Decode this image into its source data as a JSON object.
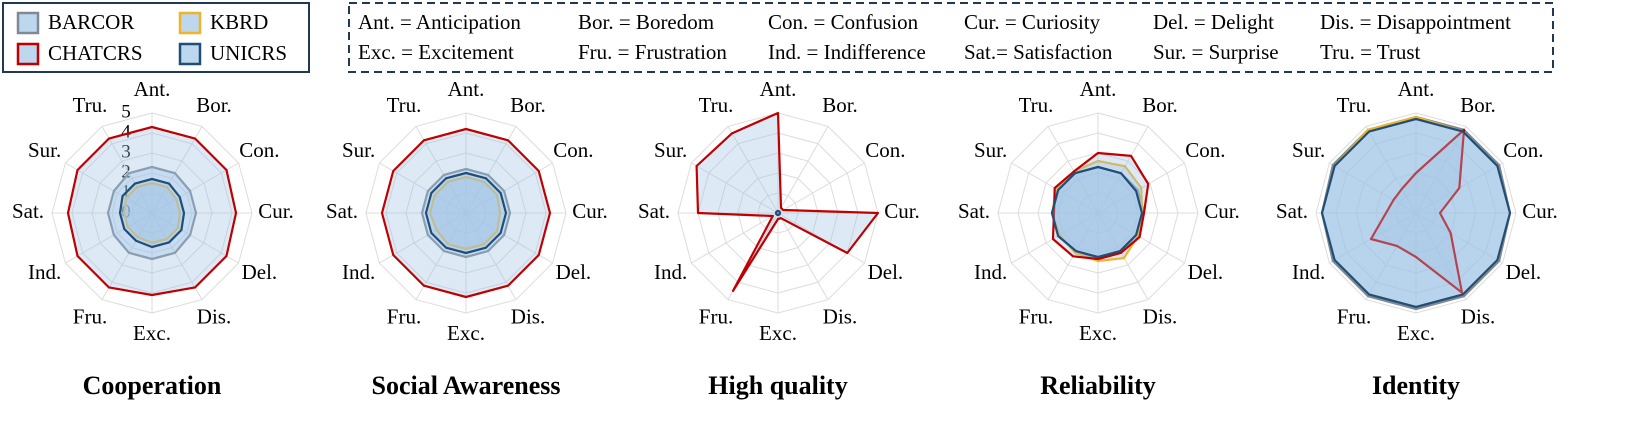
{
  "abbreviations": [
    [
      "Ant. = Anticipation",
      "Bor. = Boredom",
      "Con. = Confusion",
      "Cur. = Curiosity",
      "Del. = Delight",
      "Dis. = Disappointment"
    ],
    [
      "Exc. = Excitement",
      "Fru. = Frustration",
      "Ind. = Indifference",
      "Sat.= Satisfaction",
      "Sur. = Surprise",
      "Tru. = Trust"
    ]
  ],
  "chart_data": [
    {
      "type": "radar",
      "title": "Cooperation",
      "show_tick_labels": true,
      "categories": [
        "Ant.",
        "Bor.",
        "Con.",
        "Cur.",
        "Del.",
        "Dis.",
        "Exc.",
        "Fru.",
        "Ind.",
        "Sat.",
        "Sur.",
        "Tru."
      ],
      "rlim": [
        0,
        5
      ],
      "rticks": [
        0,
        1,
        2,
        3,
        4,
        5
      ],
      "series": [
        {
          "name": "BARCOR",
          "color": "#7f8a96",
          "values": [
            2.3,
            2.3,
            2.2,
            2.2,
            2.2,
            2.3,
            2.3,
            2.3,
            2.2,
            2.2,
            2.2,
            2.3
          ]
        },
        {
          "name": "KBRD",
          "color": "#f0b429",
          "values": [
            1.5,
            1.5,
            1.4,
            1.4,
            1.5,
            1.5,
            1.5,
            1.4,
            1.4,
            1.4,
            1.5,
            1.5
          ]
        },
        {
          "name": "CHATCRS",
          "color": "#c00000",
          "values": [
            4.3,
            4.3,
            4.3,
            4.2,
            4.3,
            4.3,
            4.1,
            4.3,
            4.3,
            4.2,
            4.3,
            4.3
          ]
        },
        {
          "name": "UNICRS",
          "color": "#1f4e79",
          "values": [
            1.7,
            1.7,
            1.6,
            1.6,
            1.7,
            1.7,
            1.7,
            1.6,
            1.6,
            1.6,
            1.7,
            1.7
          ]
        }
      ]
    },
    {
      "type": "radar",
      "title": "Social Awareness",
      "show_tick_labels": false,
      "categories": [
        "Ant.",
        "Bor.",
        "Con.",
        "Cur.",
        "Del.",
        "Dis.",
        "Exc.",
        "Fru.",
        "Ind.",
        "Sat.",
        "Sur.",
        "Tru."
      ],
      "rlim": [
        0,
        5
      ],
      "rticks": [
        0,
        1,
        2,
        3,
        4,
        5
      ],
      "series": [
        {
          "name": "BARCOR",
          "color": "#7f8a96",
          "values": [
            2.2,
            2.2,
            2.2,
            2.2,
            2.2,
            2.2,
            2.2,
            2.2,
            2.2,
            2.2,
            2.2,
            2.2
          ]
        },
        {
          "name": "KBRD",
          "color": "#f0b429",
          "values": [
            1.8,
            1.8,
            1.8,
            1.7,
            1.8,
            1.8,
            1.8,
            1.8,
            1.7,
            1.8,
            1.8,
            1.8
          ]
        },
        {
          "name": "CHATCRS",
          "color": "#c00000",
          "values": [
            4.2,
            4.2,
            4.2,
            4.2,
            4.2,
            4.2,
            4.2,
            4.2,
            4.2,
            4.2,
            4.2,
            4.2
          ]
        },
        {
          "name": "UNICRS",
          "color": "#1f4e79",
          "values": [
            2.0,
            2.0,
            2.0,
            2.0,
            2.0,
            2.0,
            2.0,
            2.0,
            2.0,
            2.0,
            2.0,
            2.0
          ]
        }
      ]
    },
    {
      "type": "radar",
      "title": "High quality",
      "show_tick_labels": false,
      "categories": [
        "Ant.",
        "Bor.",
        "Con.",
        "Cur.",
        "Del.",
        "Dis.",
        "Exc.",
        "Fru.",
        "Ind.",
        "Sat.",
        "Sur.",
        "Tru."
      ],
      "rlim": [
        0,
        5
      ],
      "rticks": [
        0,
        1,
        2,
        3,
        4,
        5
      ],
      "series": [
        {
          "name": "BARCOR",
          "color": "#7f8a96",
          "values": [
            0.1,
            0.1,
            0.1,
            0.1,
            0.1,
            0.1,
            0.1,
            0.1,
            0.1,
            0.1,
            0.1,
            0.1
          ]
        },
        {
          "name": "KBRD",
          "color": "#f0b429",
          "values": [
            0.1,
            0.1,
            0.1,
            0.1,
            0.1,
            0.1,
            0.1,
            0.1,
            0.1,
            0.1,
            0.1,
            0.1
          ]
        },
        {
          "name": "CHATCRS",
          "color": "#c00000",
          "values": [
            5.0,
            0.3,
            0.3,
            5.0,
            4.0,
            0.3,
            0.3,
            4.5,
            0.3,
            4.0,
            4.7,
            4.6
          ]
        },
        {
          "name": "UNICRS",
          "color": "#1f4e79",
          "values": [
            0.1,
            0.1,
            0.1,
            0.1,
            0.1,
            0.1,
            0.1,
            0.1,
            0.1,
            0.1,
            0.1,
            0.1
          ]
        }
      ]
    },
    {
      "type": "radar",
      "title": "Reliability",
      "show_tick_labels": false,
      "categories": [
        "Ant.",
        "Bor.",
        "Con.",
        "Cur.",
        "Del.",
        "Dis.",
        "Exc.",
        "Fru.",
        "Ind.",
        "Sat.",
        "Sur.",
        "Tru."
      ],
      "rlim": [
        0,
        5
      ],
      "rticks": [
        0,
        1,
        2,
        3,
        4,
        5
      ],
      "series": [
        {
          "name": "BARCOR",
          "color": "#7f8a96",
          "values": [
            2.3,
            2.3,
            2.3,
            2.3,
            2.2,
            2.3,
            2.3,
            2.2,
            2.3,
            2.3,
            2.3,
            2.3
          ]
        },
        {
          "name": "KBRD",
          "color": "#f0b429",
          "values": [
            2.6,
            2.7,
            2.5,
            2.2,
            2.3,
            2.6,
            2.4,
            2.3,
            2.2,
            2.3,
            2.4,
            2.4
          ]
        },
        {
          "name": "CHATCRS",
          "color": "#c00000",
          "values": [
            3.0,
            3.3,
            2.9,
            2.3,
            2.4,
            2.3,
            2.3,
            2.5,
            2.6,
            2.2,
            2.5,
            2.4
          ]
        },
        {
          "name": "UNICRS",
          "color": "#1f4e79",
          "values": [
            2.3,
            2.3,
            2.2,
            2.2,
            2.2,
            2.2,
            2.2,
            2.2,
            2.3,
            2.3,
            2.3,
            2.3
          ]
        }
      ]
    },
    {
      "type": "radar",
      "title": "Identity",
      "show_tick_labels": false,
      "categories": [
        "Ant.",
        "Bor.",
        "Con.",
        "Cur.",
        "Del.",
        "Dis.",
        "Exc.",
        "Fru.",
        "Ind.",
        "Sat.",
        "Sur.",
        "Tru."
      ],
      "rlim": [
        0,
        5
      ],
      "rticks": [
        0,
        1,
        2,
        3,
        4,
        5
      ],
      "series": [
        {
          "name": "BARCOR",
          "color": "#7f8a96",
          "values": [
            4.8,
            4.8,
            4.8,
            4.7,
            4.8,
            4.8,
            4.8,
            4.8,
            4.8,
            4.7,
            4.8,
            4.8
          ]
        },
        {
          "name": "KBRD",
          "color": "#f0b429",
          "values": [
            4.8,
            4.7,
            4.7,
            4.7,
            4.7,
            4.7,
            4.7,
            4.7,
            4.7,
            4.7,
            4.7,
            4.8
          ]
        },
        {
          "name": "CHATCRS",
          "color": "#c00000",
          "values": [
            2.0,
            4.8,
            2.5,
            1.2,
            2.0,
            4.6,
            2.2,
            1.9,
            2.6,
            1.5,
            1.3,
            1.4
          ]
        },
        {
          "name": "UNICRS",
          "color": "#1f4e79",
          "values": [
            4.7,
            4.7,
            4.7,
            4.7,
            4.7,
            4.7,
            4.7,
            4.7,
            4.7,
            4.7,
            4.7,
            4.7
          ]
        }
      ]
    }
  ]
}
